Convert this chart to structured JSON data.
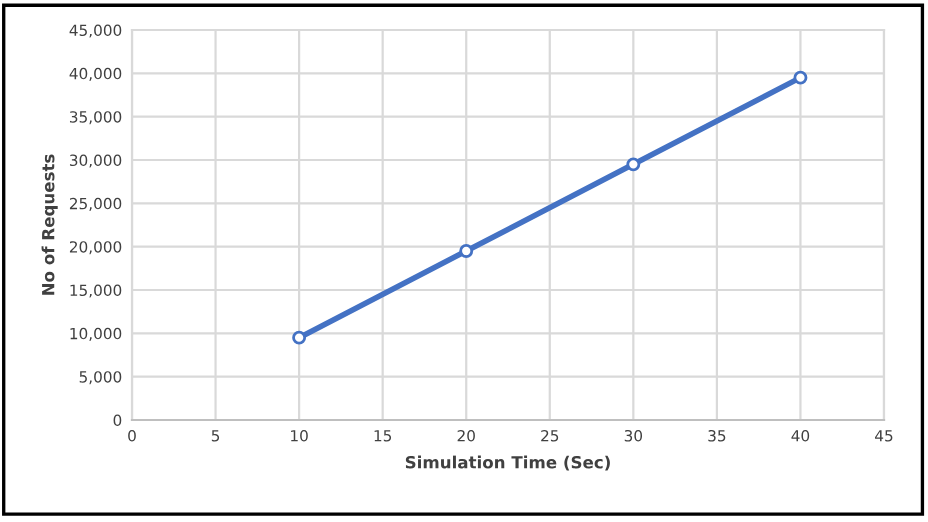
{
  "chart_data": {
    "type": "line",
    "xlabel": "Simulation Time (Sec)",
    "ylabel": "No of Requests",
    "x": [
      10,
      20,
      30,
      40
    ],
    "series": [
      {
        "color": "#4472c4",
        "values": [
          9500,
          19500,
          29500,
          39500
        ]
      }
    ],
    "xlim": [
      0,
      45
    ],
    "xticks": [
      0,
      5,
      10,
      15,
      20,
      25,
      30,
      35,
      40,
      45
    ],
    "ylim": [
      0,
      45000
    ],
    "yticks": [
      {
        "value": 0,
        "label": "0"
      },
      {
        "value": 5000,
        "label": "5,000"
      },
      {
        "value": 10000,
        "label": "10,000"
      },
      {
        "value": 15000,
        "label": "15,000"
      },
      {
        "value": 20000,
        "label": "20,000"
      },
      {
        "value": 25000,
        "label": "25,000"
      },
      {
        "value": 30000,
        "label": "30,000"
      },
      {
        "value": 35000,
        "label": "35,000"
      },
      {
        "value": 40000,
        "label": "40,000"
      },
      {
        "value": 45000,
        "label": "45,000"
      }
    ],
    "grid": true,
    "marker": "circle",
    "line_style": "solid",
    "legend": false
  }
}
